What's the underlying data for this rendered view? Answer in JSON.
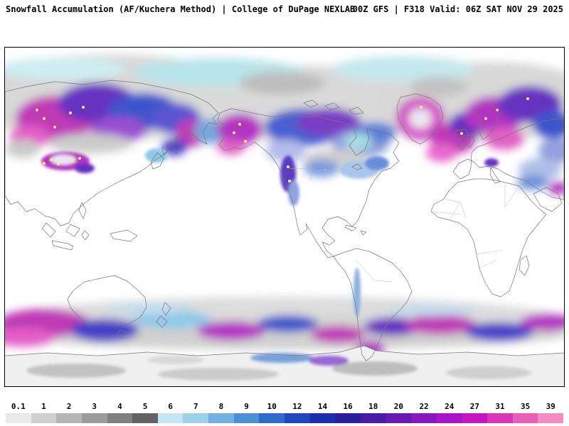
{
  "header": {
    "product_title": "Snowfall Accumulation (AF/Kuchera Method) | College of DuPage NEXLAB",
    "run_info": "00Z GFS | F318 Valid: 06Z SAT NOV 29 2025"
  },
  "map": {
    "background": "#ffffff",
    "border": "#000000",
    "coastline": "#777777"
  },
  "colorbar": {
    "labels": [
      "0.1",
      "1",
      "2",
      "3",
      "4",
      "5",
      "6",
      "7",
      "8",
      "9",
      "10",
      "12",
      "14",
      "16",
      "18",
      "20",
      "22",
      "24",
      "27",
      "31",
      "35",
      "39"
    ],
    "colors": [
      "#e9e9e9",
      "#d0d0d0",
      "#b5b5b5",
      "#9b9b9b",
      "#808080",
      "#636363",
      "#c6e4f2",
      "#9fd0ea",
      "#73b2e0",
      "#4b8fd6",
      "#2f6acc",
      "#1f46bf",
      "#1b2fae",
      "#2a1f9e",
      "#4a1ba6",
      "#681bb4",
      "#8817c0",
      "#a915c6",
      "#c715c3",
      "#da35b5",
      "#e95fb8",
      "#f48cc4"
    ]
  }
}
